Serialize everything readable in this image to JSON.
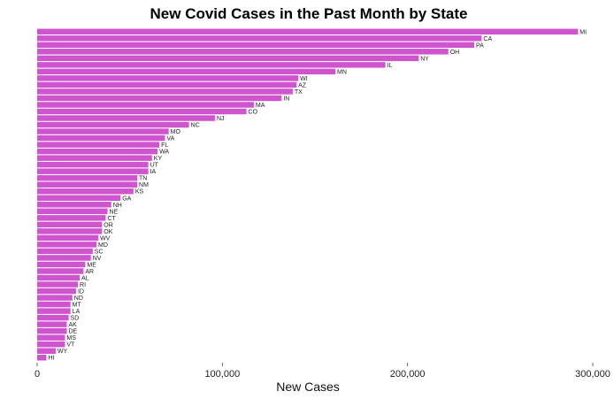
{
  "chart_data": {
    "type": "bar",
    "orientation": "horizontal",
    "title": "New Covid Cases in the Past Month by State",
    "xlabel": "New Cases",
    "ylabel": "",
    "xlim": [
      0,
      300000
    ],
    "xticks": [
      0,
      100000,
      200000,
      300000
    ],
    "xtick_labels": [
      "0",
      "100,000",
      "200,000",
      "300,000"
    ],
    "grid": false,
    "bar_color": "#cf55cf",
    "categories": [
      "MI",
      "CA",
      "PA",
      "OH",
      "NY",
      "IL",
      "MN",
      "WI",
      "AZ",
      "TX",
      "IN",
      "MA",
      "CO",
      "NJ",
      "NC",
      "MO",
      "VA",
      "FL",
      "WA",
      "KY",
      "UT",
      "IA",
      "TN",
      "NM",
      "KS",
      "GA",
      "NH",
      "NE",
      "CT",
      "OR",
      "OK",
      "WV",
      "MD",
      "SC",
      "NV",
      "ME",
      "AR",
      "AL",
      "RI",
      "ID",
      "ND",
      "MT",
      "LA",
      "SD",
      "AK",
      "DE",
      "MS",
      "VT",
      "WY",
      "HI"
    ],
    "values": [
      292000,
      240000,
      236000,
      222000,
      206000,
      188000,
      161000,
      141000,
      140000,
      138000,
      132000,
      117000,
      113000,
      96000,
      82000,
      71000,
      69000,
      66000,
      65000,
      62000,
      60000,
      60000,
      54000,
      54000,
      52000,
      45000,
      40000,
      38000,
      37000,
      35000,
      35000,
      33000,
      32000,
      30000,
      29000,
      26000,
      25000,
      23000,
      22000,
      21000,
      19000,
      18000,
      18000,
      17000,
      16000,
      16000,
      15000,
      15000,
      10000,
      5000
    ]
  }
}
